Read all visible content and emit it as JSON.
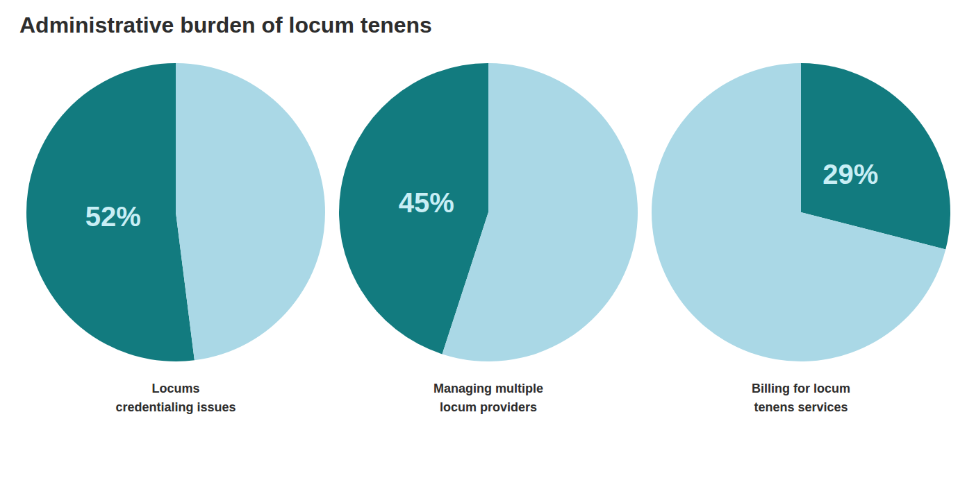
{
  "title": "Administrative burden of locum tenens",
  "chart_data": [
    {
      "type": "pie",
      "title": "Locums\ncredentialing issues",
      "values": [
        52,
        48
      ],
      "value_labels": [
        "52%",
        null
      ],
      "colors": [
        "#127b7f",
        "#aad8e6"
      ],
      "data_labels": true
    },
    {
      "type": "pie",
      "title": "Managing multiple\nlocum providers",
      "values": [
        45,
        55
      ],
      "value_labels": [
        "45%",
        null
      ],
      "colors": [
        "#127b7f",
        "#aad8e6"
      ],
      "data_labels": true
    },
    {
      "type": "pie",
      "title": "Billing for locum\ntenens services",
      "values": [
        29,
        71
      ],
      "value_labels": [
        "29%",
        null
      ],
      "colors": [
        "#127b7f",
        "#aad8e6"
      ],
      "data_labels": true
    }
  ]
}
